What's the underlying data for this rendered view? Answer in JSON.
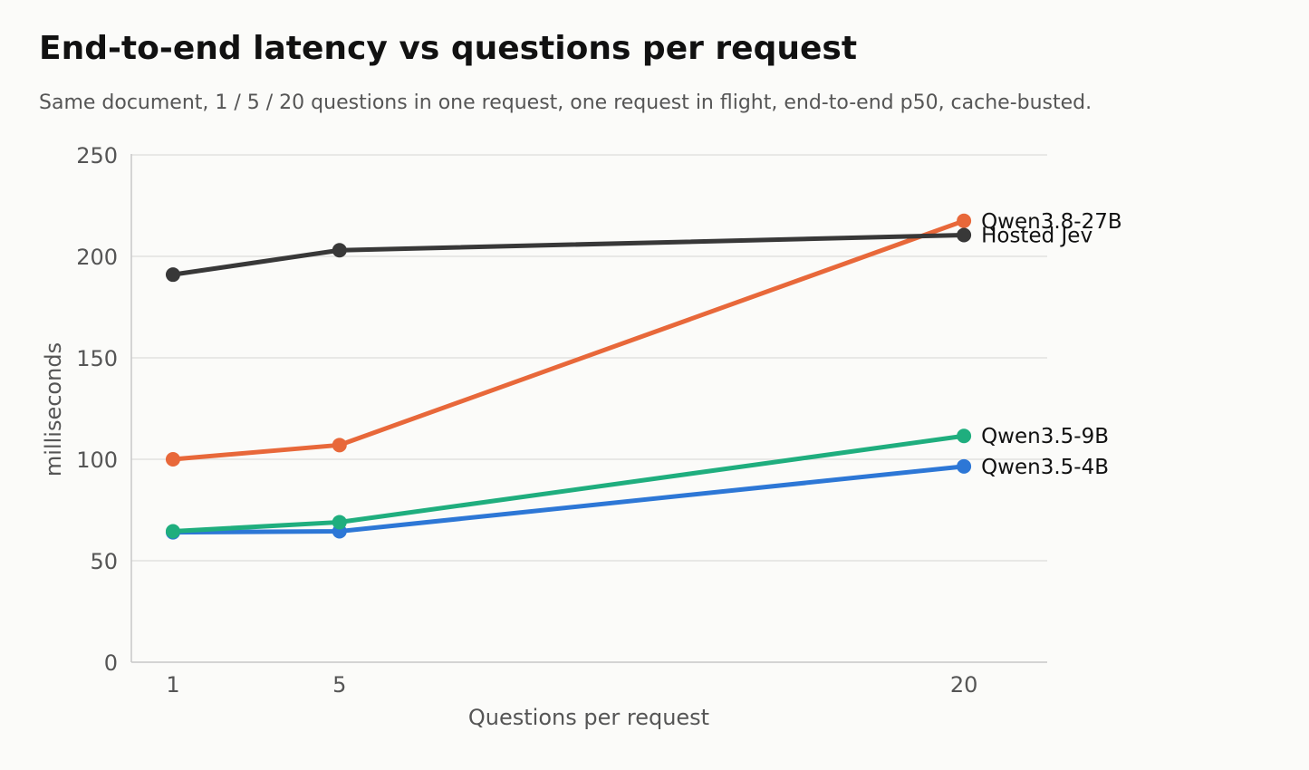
{
  "chart_data": {
    "type": "line",
    "title": "End-to-end latency vs questions per request",
    "subtitle": "Same document, 1 / 5 / 20 questions in one request, one request in flight, end-to-end p50, cache-busted.",
    "xlabel": "Questions per request",
    "ylabel": "milliseconds",
    "x": [
      1,
      5,
      20
    ],
    "x_ticks": [
      "1",
      "5",
      "20"
    ],
    "xlim": [
      0,
      22
    ],
    "ylim": [
      0,
      250
    ],
    "y_ticks": [
      "0",
      "50",
      "100",
      "150",
      "200",
      "250"
    ],
    "grid": true,
    "legend": "direct labels at line ends",
    "series": [
      {
        "name": "Qwen3.5-4B",
        "values": [
          64,
          64.5,
          96.5
        ],
        "color": "#2d77d6"
      },
      {
        "name": "Qwen3.5-9B",
        "values": [
          64.5,
          69,
          111.5
        ],
        "color": "#1fae7e"
      },
      {
        "name": "Qwen3.8-27B",
        "values": [
          100,
          107,
          217.5
        ],
        "color": "#e8683a"
      },
      {
        "name": "Hosted Jev",
        "values": [
          191,
          203,
          210.5
        ],
        "color": "#383838"
      }
    ]
  }
}
